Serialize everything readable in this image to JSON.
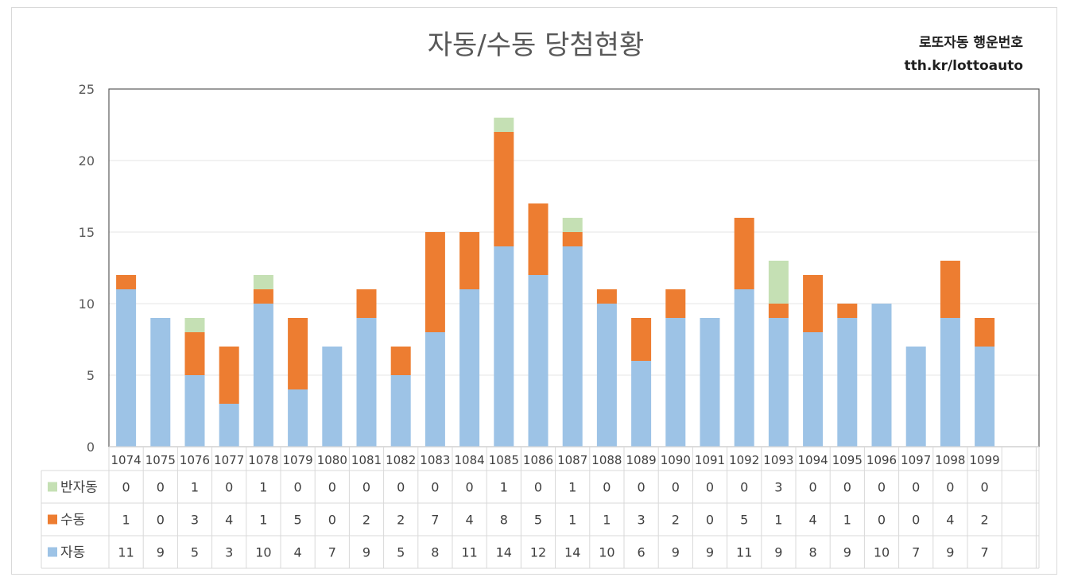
{
  "chart_data": {
    "type": "bar",
    "stacked": true,
    "title": "자동/수동 당첨현황",
    "brand_name": "로또자동 행운번호",
    "brand_url": "tth.kr/lottoauto",
    "categories": [
      "1074",
      "1075",
      "1076",
      "1077",
      "1078",
      "1079",
      "1080",
      "1081",
      "1082",
      "1083",
      "1084",
      "1085",
      "1086",
      "1087",
      "1088",
      "1089",
      "1090",
      "1091",
      "1092",
      "1093",
      "1094",
      "1095",
      "1096",
      "1097",
      "1098",
      "1099"
    ],
    "series": [
      {
        "name": "자동",
        "color": "#9dc3e6",
        "values": [
          11,
          9,
          5,
          3,
          10,
          4,
          7,
          9,
          5,
          8,
          11,
          14,
          12,
          14,
          10,
          6,
          9,
          9,
          11,
          9,
          8,
          9,
          10,
          7,
          9,
          7
        ]
      },
      {
        "name": "수동",
        "color": "#ed7d31",
        "values": [
          1,
          0,
          3,
          4,
          1,
          5,
          0,
          2,
          2,
          7,
          4,
          8,
          5,
          1,
          1,
          3,
          2,
          0,
          5,
          1,
          4,
          1,
          0,
          0,
          4,
          2
        ]
      },
      {
        "name": "반자동",
        "color": "#c5e0b4",
        "values": [
          0,
          0,
          1,
          0,
          1,
          0,
          0,
          0,
          0,
          0,
          0,
          1,
          0,
          1,
          0,
          0,
          0,
          0,
          0,
          3,
          0,
          0,
          0,
          0,
          0,
          0
        ]
      }
    ],
    "table_order": [
      "반자동",
      "수동",
      "자동"
    ],
    "ylim": [
      0,
      25
    ],
    "yticks": [
      "0",
      "5",
      "10",
      "15",
      "20",
      "25"
    ],
    "grid": true,
    "legend": "data-table"
  }
}
